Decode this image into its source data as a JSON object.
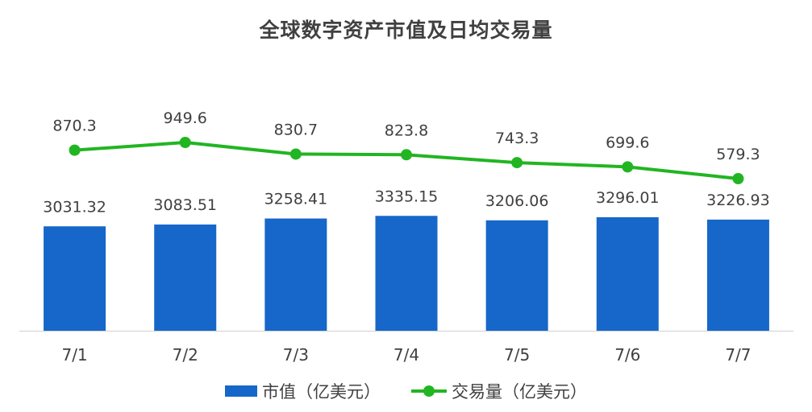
{
  "chart_data": {
    "type": "bar",
    "title": "全球数字资产市值及日均交易量",
    "categories": [
      "7/1",
      "7/2",
      "7/3",
      "7/4",
      "7/5",
      "7/6",
      "7/7"
    ],
    "series": [
      {
        "name": "市值（亿美元）",
        "type": "bar",
        "color": "#1667c9",
        "values": [
          3031.32,
          3083.51,
          3258.41,
          3335.15,
          3206.06,
          3296.01,
          3226.93
        ],
        "labels": [
          "3031.32",
          "3083.51",
          "3258.41",
          "3335.15",
          "3206.06",
          "3296.01",
          "3226.93"
        ]
      },
      {
        "name": "交易量（亿美元）",
        "type": "line",
        "color": "#22b522",
        "values": [
          870.3,
          949.6,
          830.7,
          823.8,
          743.3,
          699.6,
          579.3
        ],
        "labels": [
          "870.3",
          "949.6",
          "830.7",
          "823.8",
          "743.3",
          "699.6",
          "579.3"
        ]
      }
    ],
    "legend": "bottom",
    "grid": false
  }
}
